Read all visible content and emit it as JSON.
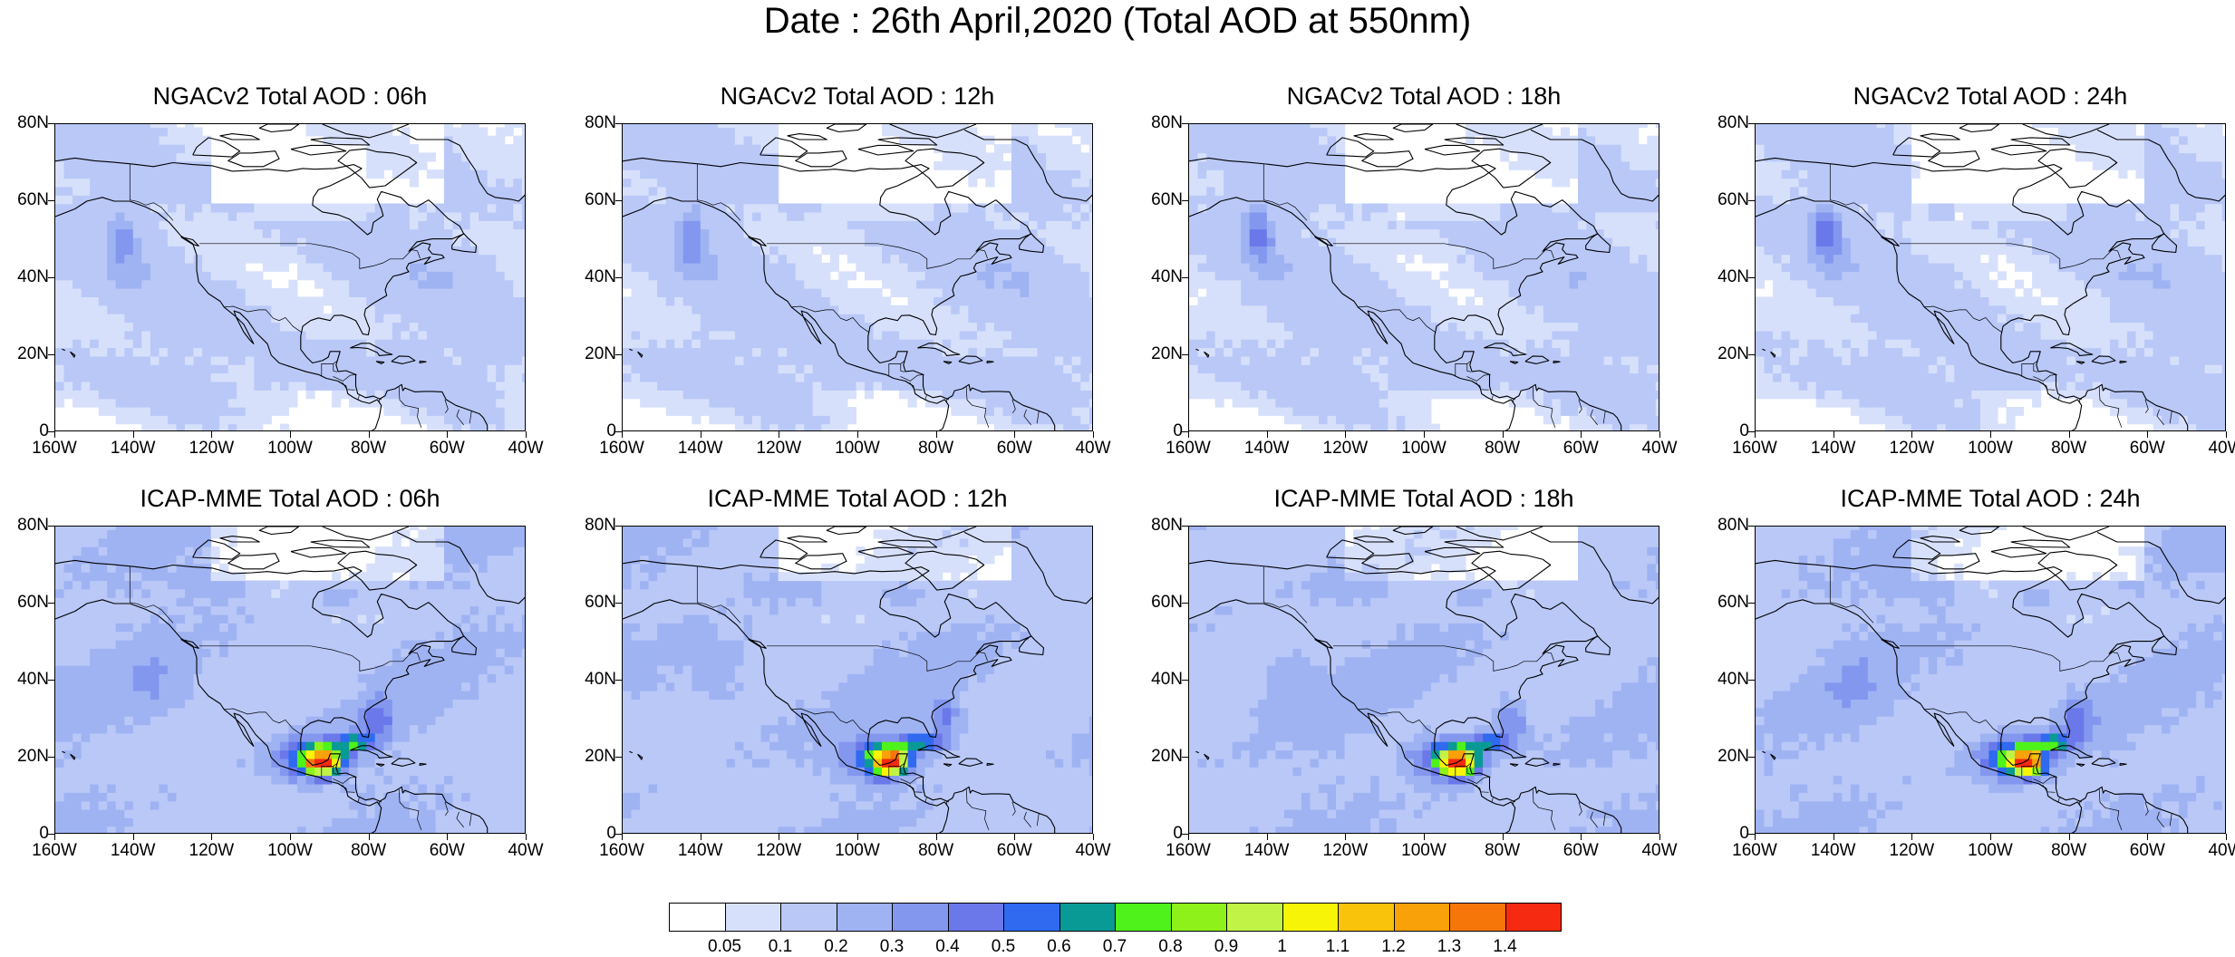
{
  "title": "Date : 26th April,2020 (Total AOD at 550nm)",
  "axes": {
    "y_ticks": [
      "80N",
      "60N",
      "40N",
      "20N",
      "0"
    ],
    "x_ticks": [
      "160W",
      "140W",
      "120W",
      "100W",
      "80W",
      "60W",
      "40W"
    ],
    "lon_range": [
      -160,
      -40
    ],
    "lat_range": [
      0,
      80
    ]
  },
  "panels": [
    {
      "title": "NGACv2 Total AOD : 06h",
      "model": "NGACv2",
      "forecast_hour": "06h"
    },
    {
      "title": "NGACv2 Total AOD : 12h",
      "model": "NGACv2",
      "forecast_hour": "12h"
    },
    {
      "title": "NGACv2 Total AOD : 18h",
      "model": "NGACv2",
      "forecast_hour": "18h"
    },
    {
      "title": "NGACv2 Total AOD : 24h",
      "model": "NGACv2",
      "forecast_hour": "24h"
    },
    {
      "title": "ICAP-MME Total AOD : 06h",
      "model": "ICAP-MME",
      "forecast_hour": "06h"
    },
    {
      "title": "ICAP-MME Total AOD : 12h",
      "model": "ICAP-MME",
      "forecast_hour": "12h"
    },
    {
      "title": "ICAP-MME Total AOD : 18h",
      "model": "ICAP-MME",
      "forecast_hour": "18h"
    },
    {
      "title": "ICAP-MME Total AOD : 24h",
      "model": "ICAP-MME",
      "forecast_hour": "24h"
    }
  ],
  "colorbar": {
    "labels": [
      "0.05",
      "0.1",
      "0.2",
      "0.3",
      "0.4",
      "0.5",
      "0.6",
      "0.7",
      "0.8",
      "0.9",
      "1",
      "1.1",
      "1.2",
      "1.3",
      "1.4"
    ],
    "colors": [
      "#ffffff",
      "#d7e0fb",
      "#b9c8f7",
      "#9fb3f3",
      "#8497ef",
      "#6a78ea",
      "#2f6af0",
      "#0a9a95",
      "#4ff21a",
      "#8ef21a",
      "#c0f346",
      "#f8f407",
      "#f9c20b",
      "#f8a109",
      "#f67609",
      "#f52a10"
    ]
  }
}
